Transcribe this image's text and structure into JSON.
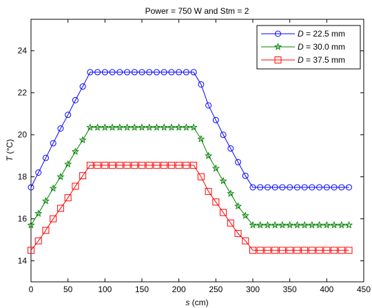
{
  "chart_data": {
    "type": "line",
    "title": "Power = 750 W and Stm = 2",
    "xlabel": {
      "var": "s",
      "unit": " (cm)"
    },
    "ylabel": {
      "var": "T",
      "unit": " (°C)"
    },
    "xlim": [
      0,
      450
    ],
    "ylim": [
      13,
      25.5
    ],
    "xticks": [
      0,
      50,
      100,
      150,
      200,
      250,
      300,
      350,
      400,
      450
    ],
    "yticks": [
      14,
      16,
      18,
      20,
      22,
      24
    ],
    "grid": false,
    "legend_position": "top-right",
    "x": [
      0,
      10,
      20,
      30,
      40,
      50,
      60,
      70,
      80,
      90,
      100,
      110,
      120,
      130,
      140,
      150,
      160,
      170,
      180,
      190,
      200,
      210,
      220,
      230,
      240,
      250,
      260,
      270,
      280,
      290,
      300,
      310,
      320,
      330,
      340,
      350,
      360,
      370,
      380,
      390,
      400,
      410,
      420,
      430
    ],
    "series": [
      {
        "name_var": "D",
        "name_rest": " = 22.5 mm",
        "color": "#0000ff",
        "marker": "circle",
        "values": [
          17.5,
          18.2,
          18.9,
          19.6,
          20.3,
          20.95,
          21.65,
          22.3,
          22.98,
          22.98,
          22.98,
          22.98,
          22.98,
          22.98,
          22.98,
          22.98,
          22.98,
          22.98,
          22.98,
          22.98,
          22.98,
          22.98,
          22.98,
          22.4,
          21.4,
          20.7,
          20.0,
          19.35,
          18.7,
          18.05,
          17.5,
          17.5,
          17.5,
          17.5,
          17.5,
          17.5,
          17.5,
          17.5,
          17.5,
          17.5,
          17.5,
          17.5,
          17.5,
          17.5
        ]
      },
      {
        "name_var": "D",
        "name_rest": " = 30.0 mm",
        "color": "#008000",
        "marker": "star",
        "values": [
          15.7,
          16.25,
          16.85,
          17.45,
          18.0,
          18.6,
          19.2,
          19.75,
          20.35,
          20.35,
          20.35,
          20.35,
          20.35,
          20.35,
          20.35,
          20.35,
          20.35,
          20.35,
          20.35,
          20.35,
          20.35,
          20.35,
          20.35,
          19.8,
          19.0,
          18.4,
          17.8,
          17.2,
          16.6,
          16.15,
          15.7,
          15.7,
          15.7,
          15.7,
          15.7,
          15.7,
          15.7,
          15.7,
          15.7,
          15.7,
          15.7,
          15.7,
          15.7,
          15.7
        ]
      },
      {
        "name_var": "D",
        "name_rest": " = 37.5 mm",
        "color": "#ff0000",
        "marker": "square",
        "values": [
          14.5,
          14.95,
          15.45,
          16.0,
          16.5,
          17.0,
          17.55,
          18.05,
          18.55,
          18.55,
          18.55,
          18.55,
          18.55,
          18.55,
          18.55,
          18.55,
          18.55,
          18.55,
          18.55,
          18.55,
          18.55,
          18.55,
          18.55,
          18.0,
          17.3,
          16.8,
          16.3,
          15.8,
          15.3,
          14.95,
          14.5,
          14.5,
          14.5,
          14.5,
          14.5,
          14.5,
          14.5,
          14.5,
          14.5,
          14.5,
          14.5,
          14.5,
          14.5,
          14.5
        ]
      }
    ]
  }
}
